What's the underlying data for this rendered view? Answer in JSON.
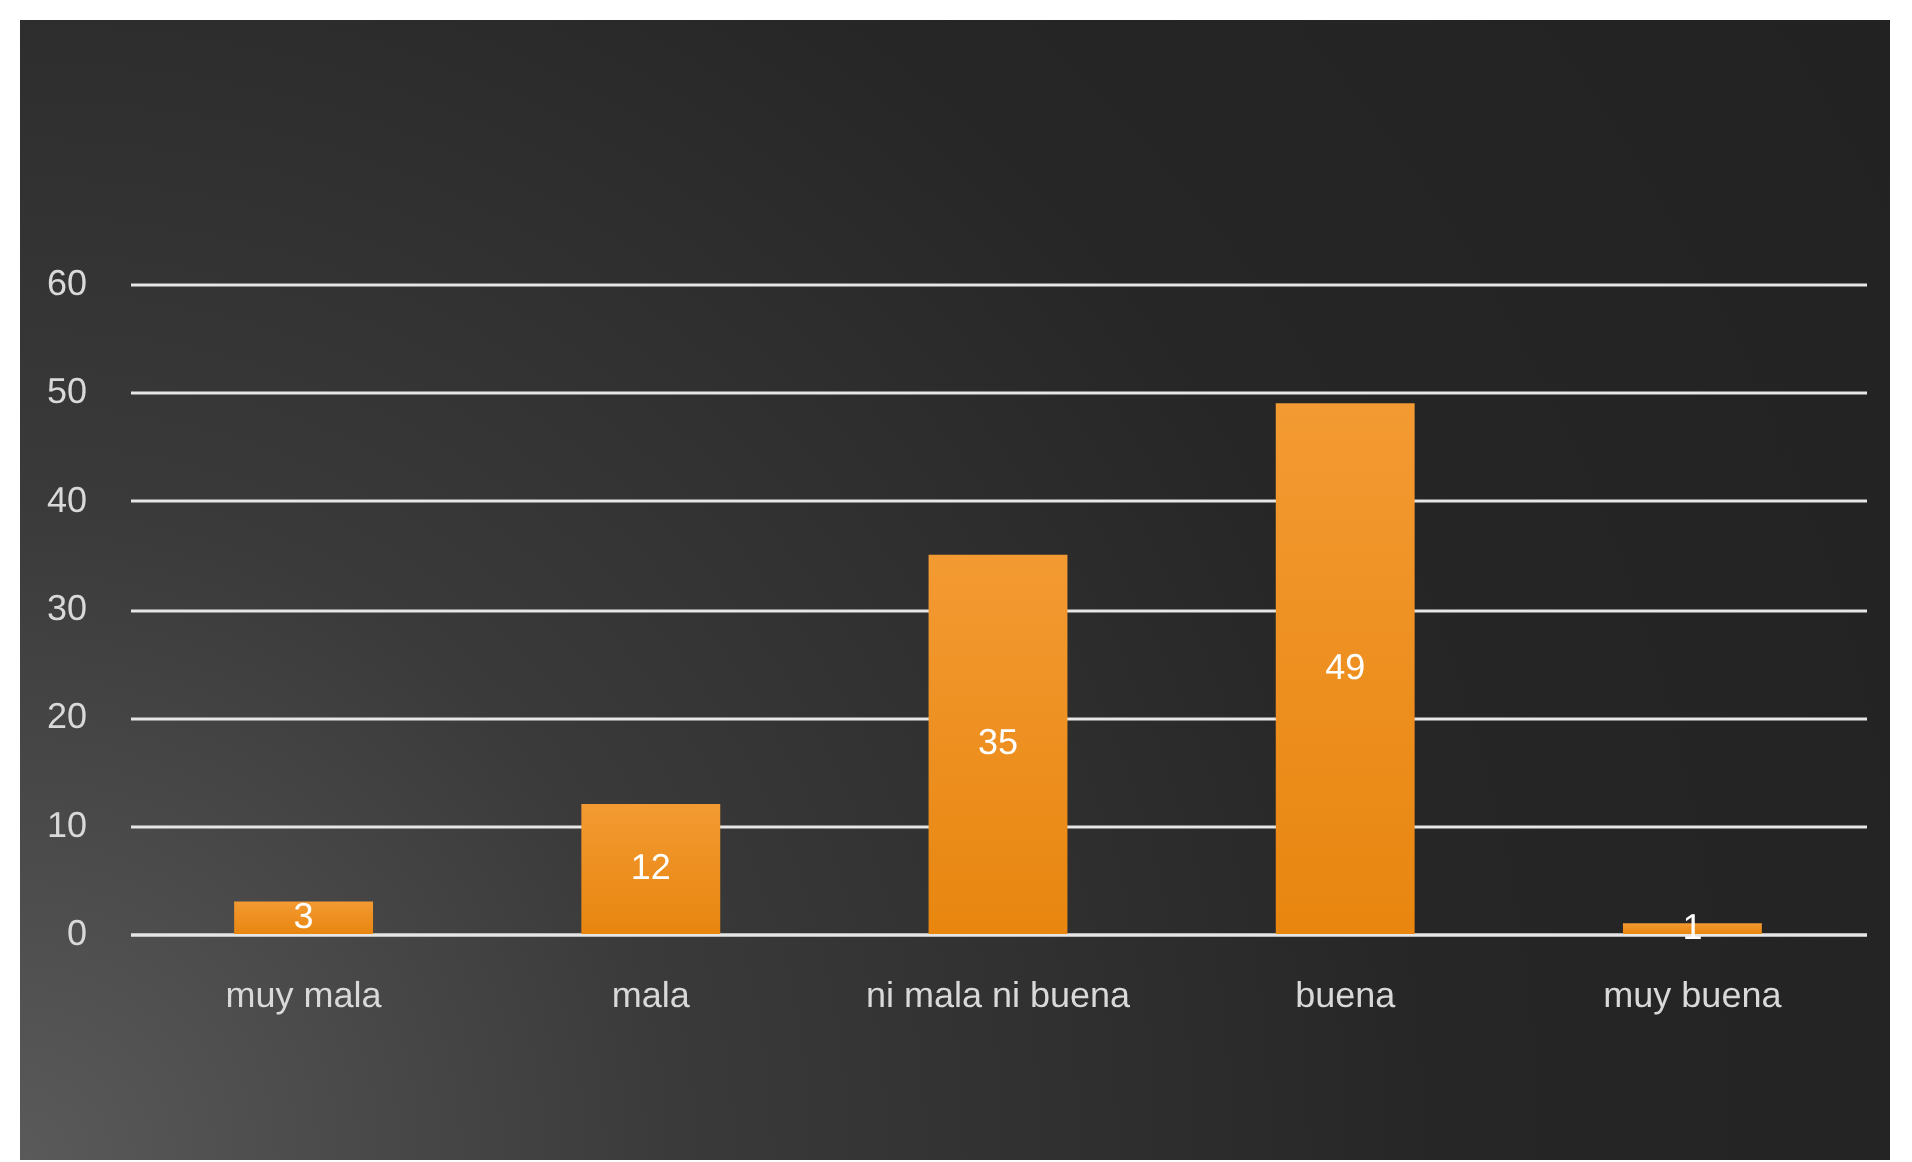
{
  "chart_data": {
    "type": "bar",
    "categories": [
      "muy mala",
      "mala",
      "ni mala ni buena",
      "buena",
      "muy buena"
    ],
    "values": [
      3,
      12,
      35,
      49,
      1
    ],
    "color": "#f39a32",
    "ylim": [
      0,
      60
    ],
    "yticks": [
      0,
      10,
      20,
      30,
      40,
      50,
      60
    ],
    "grid": "y",
    "data_labels": true
  }
}
